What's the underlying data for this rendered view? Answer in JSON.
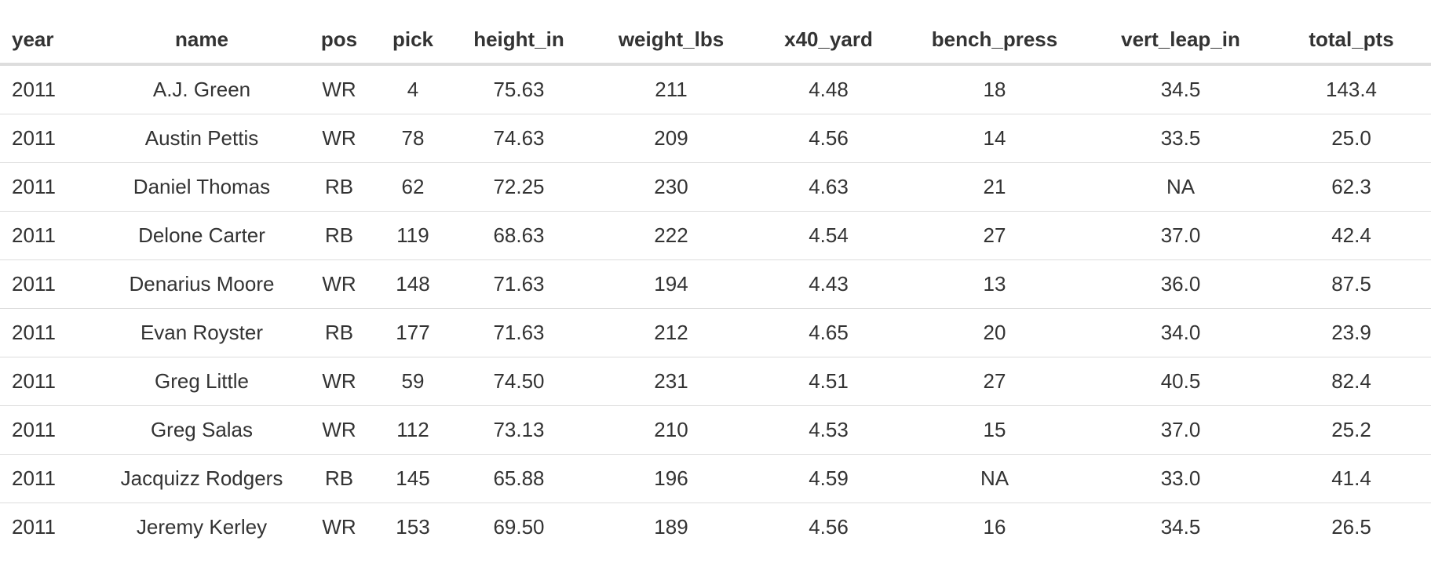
{
  "table": {
    "columns": [
      "year",
      "name",
      "pos",
      "pick",
      "height_in",
      "weight_lbs",
      "x40_yard",
      "bench_press",
      "vert_leap_in",
      "total_pts"
    ],
    "rows": [
      [
        "2011",
        "A.J. Green",
        "WR",
        "4",
        "75.63",
        "211",
        "4.48",
        "18",
        "34.5",
        "143.4"
      ],
      [
        "2011",
        "Austin Pettis",
        "WR",
        "78",
        "74.63",
        "209",
        "4.56",
        "14",
        "33.5",
        "25.0"
      ],
      [
        "2011",
        "Daniel Thomas",
        "RB",
        "62",
        "72.25",
        "230",
        "4.63",
        "21",
        "NA",
        "62.3"
      ],
      [
        "2011",
        "Delone Carter",
        "RB",
        "119",
        "68.63",
        "222",
        "4.54",
        "27",
        "37.0",
        "42.4"
      ],
      [
        "2011",
        "Denarius Moore",
        "WR",
        "148",
        "71.63",
        "194",
        "4.43",
        "13",
        "36.0",
        "87.5"
      ],
      [
        "2011",
        "Evan Royster",
        "RB",
        "177",
        "71.63",
        "212",
        "4.65",
        "20",
        "34.0",
        "23.9"
      ],
      [
        "2011",
        "Greg Little",
        "WR",
        "59",
        "74.50",
        "231",
        "4.51",
        "27",
        "40.5",
        "82.4"
      ],
      [
        "2011",
        "Greg Salas",
        "WR",
        "112",
        "73.13",
        "210",
        "4.53",
        "15",
        "37.0",
        "25.2"
      ],
      [
        "2011",
        "Jacquizz Rodgers",
        "RB",
        "145",
        "65.88",
        "196",
        "4.59",
        "NA",
        "33.0",
        "41.4"
      ],
      [
        "2011",
        "Jeremy Kerley",
        "WR",
        "153",
        "69.50",
        "189",
        "4.56",
        "16",
        "34.5",
        "26.5"
      ]
    ]
  }
}
